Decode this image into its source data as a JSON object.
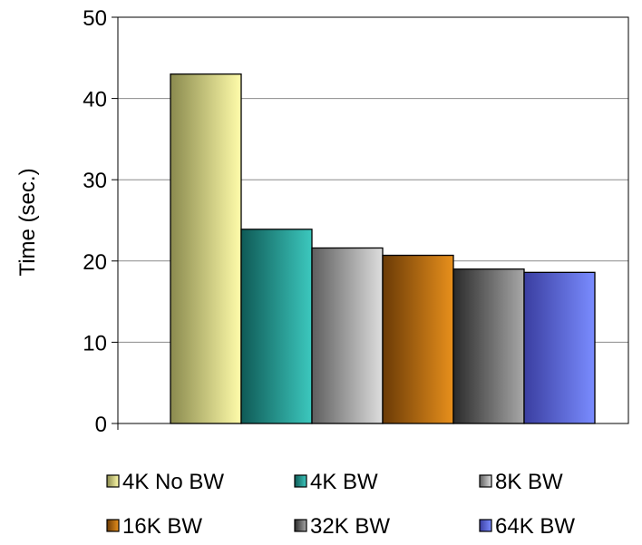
{
  "chart_data": {
    "type": "bar",
    "title": "",
    "xlabel": "",
    "ylabel": "Time (sec.)",
    "ylim": [
      0,
      50
    ],
    "yticks": [
      0,
      10,
      20,
      30,
      40,
      50
    ],
    "grid": true,
    "legend_position": "bottom",
    "series": [
      {
        "name": "4K No BW",
        "value": 43.0,
        "color_dark": "#8a8a4e",
        "color_light": "#fffcaa"
      },
      {
        "name": "4K BW",
        "value": 23.9,
        "color_dark": "#0f5a56",
        "color_light": "#3cc8be"
      },
      {
        "name": "8K BW",
        "value": 21.6,
        "color_dark": "#5e5e5e",
        "color_light": "#dedede"
      },
      {
        "name": "16K BW",
        "value": 20.7,
        "color_dark": "#6a3a06",
        "color_light": "#e8901c"
      },
      {
        "name": "32K BW",
        "value": 19.0,
        "color_dark": "#2a2a2a",
        "color_light": "#a8a8a8"
      },
      {
        "name": "64K BW",
        "value": 18.6,
        "color_dark": "#3a3ea0",
        "color_light": "#7a8cff"
      }
    ]
  }
}
